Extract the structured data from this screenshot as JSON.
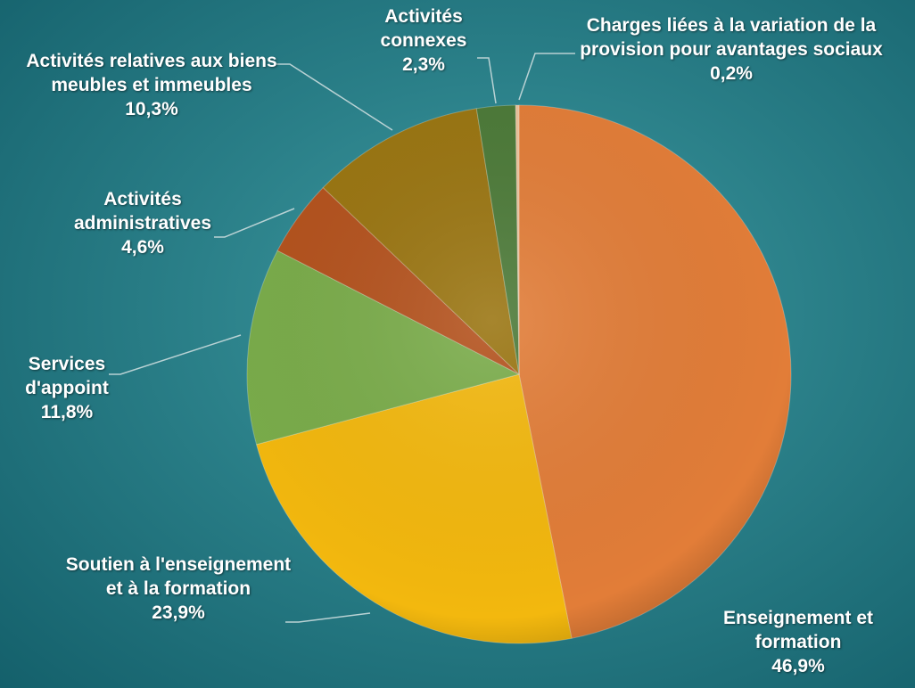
{
  "chart_data": {
    "type": "pie",
    "categories": [
      "Enseignement et formation",
      "Soutien à l'enseignement et à la formation",
      "Services d'appoint",
      "Activités administratives",
      "Activités relatives aux biens meubles et immeubles",
      "Activités connexes",
      "Charges liées à la variation de la provision pour avantages sociaux"
    ],
    "values": [
      46.9,
      23.9,
      11.8,
      4.6,
      10.3,
      2.3,
      0.2
    ],
    "value_labels": [
      "46,9%",
      "23,9%",
      "11,8%",
      "4,6%",
      "10,3%",
      "2,3%",
      "0,2%"
    ],
    "colors": [
      "#e27d38",
      "#f3b80e",
      "#7aac4a",
      "#b4521d",
      "#9a7511",
      "#4c7a38",
      "#ecc29a"
    ]
  }
}
